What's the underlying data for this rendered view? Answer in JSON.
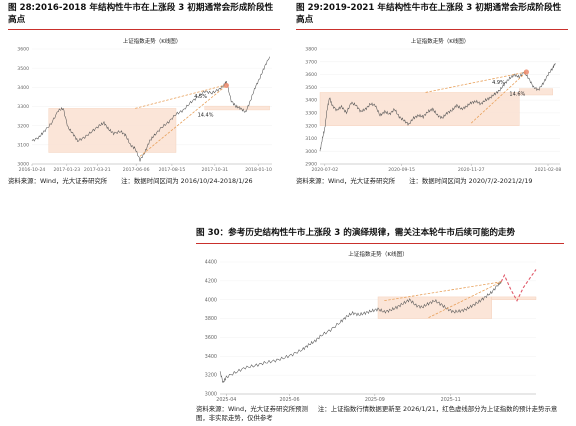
{
  "colors": {
    "line": "#555555",
    "zone_fill": "#fbe3d4",
    "zone_stroke": "#f3c8ae",
    "trend": "#e8a05a",
    "forecast": "#e05a6a",
    "marker": "#ec8a6c",
    "separator": "#c9302c",
    "grid": "#eeeeee",
    "text": "#222222"
  },
  "fig28": {
    "title": "图 28:2016-2018 年结构性牛市在上涨段 3 初期通常会形成阶段性高点",
    "source": "资料来源：Wind，光大证券研究所",
    "note": "注：数据时间区间为 2016/10/24-2018/1/26"
  },
  "fig29": {
    "title": "图 29:2019-2021 年结构性牛市在上涨段 3 初期通常会形成阶段性高点",
    "source": "资料来源：Wind，光大证券研究所",
    "note": "注：数据时间区间为 2020/7/2-2021/2/19"
  },
  "fig30": {
    "title": "图 30：参考历史结构性牛市上涨段 3 的演绎规律，需关注本轮牛市后续可能的走势",
    "source": "资料来源：Wind，光大证券研究所预测",
    "note": "注：上证指数行情数据更新至 2026/1/21，红色虚线部分为上证指数的预计走势示意图，非实际走势，仅供参考"
  },
  "chart_data": [
    {
      "type": "line",
      "title": "上证指数走势（K线图）",
      "ylim": [
        3000,
        3600
      ],
      "yticks": [
        3000,
        3100,
        3200,
        3300,
        3400,
        3500,
        3600
      ],
      "x_ticks": [
        "2016-10-24",
        "2017-01-23",
        "2017-03-21",
        "2017-06-06",
        "2017-08-15",
        "2017-10-31",
        "2018-01-10"
      ],
      "x_tick_pos": [
        0,
        0.145,
        0.272,
        0.434,
        0.583,
        0.762,
        0.944
      ],
      "series": [
        {
          "points": [
            [
              0,
              3120
            ],
            [
              0.03,
              3140
            ],
            [
              0.05,
              3170
            ],
            [
              0.08,
              3210
            ],
            [
              0.11,
              3280
            ],
            [
              0.13,
              3290
            ],
            [
              0.15,
              3190
            ],
            [
              0.17,
              3160
            ],
            [
              0.19,
              3120
            ],
            [
              0.22,
              3140
            ],
            [
              0.25,
              3170
            ],
            [
              0.28,
              3200
            ],
            [
              0.3,
              3215
            ],
            [
              0.32,
              3180
            ],
            [
              0.34,
              3160
            ],
            [
              0.37,
              3170
            ],
            [
              0.39,
              3150
            ],
            [
              0.41,
              3100
            ],
            [
              0.43,
              3080
            ],
            [
              0.45,
              3020
            ],
            [
              0.47,
              3060
            ],
            [
              0.49,
              3120
            ],
            [
              0.51,
              3150
            ],
            [
              0.54,
              3190
            ],
            [
              0.57,
              3220
            ],
            [
              0.6,
              3260
            ],
            [
              0.63,
              3280
            ],
            [
              0.66,
              3320
            ],
            [
              0.69,
              3350
            ],
            [
              0.72,
              3380
            ],
            [
              0.75,
              3370
            ],
            [
              0.78,
              3390
            ],
            [
              0.8,
              3410
            ],
            [
              0.81,
              3430
            ],
            [
              0.83,
              3330
            ],
            [
              0.85,
              3300
            ],
            [
              0.87,
              3290
            ],
            [
              0.89,
              3270
            ],
            [
              0.91,
              3330
            ],
            [
              0.93,
              3400
            ],
            [
              0.95,
              3450
            ],
            [
              0.97,
              3510
            ],
            [
              0.99,
              3560
            ]
          ]
        }
      ],
      "zones": [
        {
          "x0": 0.07,
          "x1": 0.6,
          "y0": 3060,
          "y1": 3290
        },
        {
          "x0": 0.72,
          "x1": 0.99,
          "y0": 3282,
          "y1": 3302
        }
      ],
      "trendlines": [
        {
          "from": [
            0.43,
            3290
          ],
          "to": [
            0.8,
            3410
          ],
          "label": "4.5%"
        },
        {
          "from": [
            0.45,
            3040
          ],
          "to": [
            0.81,
            3410
          ],
          "label": "14.4%"
        }
      ],
      "marker": [
        0.81,
        3410
      ]
    },
    {
      "type": "line",
      "title": "上证指数走势（K线图）",
      "ylim": [
        2900,
        3800
      ],
      "yticks": [
        2900,
        3000,
        3100,
        3200,
        3300,
        3400,
        3500,
        3600,
        3700,
        3800
      ],
      "x_ticks": [
        "2020-07-02",
        "2020-09-15",
        "2020-11-27",
        "2021-02-08"
      ],
      "x_tick_pos": [
        0.02,
        0.34,
        0.63,
        0.95
      ],
      "series": [
        {
          "points": [
            [
              0,
              3000
            ],
            [
              0.01,
              3100
            ],
            [
              0.02,
              3180
            ],
            [
              0.03,
              3330
            ],
            [
              0.04,
              3420
            ],
            [
              0.05,
              3360
            ],
            [
              0.07,
              3320
            ],
            [
              0.09,
              3350
            ],
            [
              0.11,
              3300
            ],
            [
              0.13,
              3380
            ],
            [
              0.15,
              3360
            ],
            [
              0.17,
              3310
            ],
            [
              0.19,
              3330
            ],
            [
              0.21,
              3370
            ],
            [
              0.23,
              3360
            ],
            [
              0.25,
              3280
            ],
            [
              0.27,
              3310
            ],
            [
              0.29,
              3290
            ],
            [
              0.31,
              3330
            ],
            [
              0.33,
              3270
            ],
            [
              0.35,
              3240
            ],
            [
              0.37,
              3210
            ],
            [
              0.39,
              3260
            ],
            [
              0.41,
              3280
            ],
            [
              0.43,
              3270
            ],
            [
              0.45,
              3310
            ],
            [
              0.47,
              3330
            ],
            [
              0.49,
              3280
            ],
            [
              0.51,
              3260
            ],
            [
              0.53,
              3300
            ],
            [
              0.55,
              3320
            ],
            [
              0.57,
              3360
            ],
            [
              0.59,
              3330
            ],
            [
              0.61,
              3350
            ],
            [
              0.63,
              3380
            ],
            [
              0.65,
              3390
            ],
            [
              0.67,
              3370
            ],
            [
              0.69,
              3400
            ],
            [
              0.71,
              3420
            ],
            [
              0.73,
              3450
            ],
            [
              0.75,
              3480
            ],
            [
              0.77,
              3530
            ],
            [
              0.79,
              3570
            ],
            [
              0.81,
              3600
            ],
            [
              0.83,
              3580
            ],
            [
              0.85,
              3620
            ],
            [
              0.87,
              3570
            ],
            [
              0.89,
              3500
            ],
            [
              0.91,
              3480
            ],
            [
              0.93,
              3530
            ],
            [
              0.95,
              3600
            ],
            [
              0.97,
              3650
            ],
            [
              0.98,
              3690
            ]
          ]
        }
      ],
      "zones": [
        {
          "x0": 0.0,
          "x1": 0.83,
          "y0": 3200,
          "y1": 3460
        },
        {
          "x0": 0.83,
          "x1": 0.97,
          "y0": 3440,
          "y1": 3490
        }
      ],
      "trendlines": [
        {
          "from": [
            0.44,
            3460
          ],
          "to": [
            0.86,
            3620
          ],
          "label": "4.9%"
        },
        {
          "from": [
            0.63,
            3220
          ],
          "to": [
            0.86,
            3620
          ],
          "label": "14.6%"
        }
      ],
      "marker": [
        0.86,
        3620
      ]
    },
    {
      "type": "line",
      "title": "上证指数走势（K线图）",
      "ylim": [
        3000,
        4400
      ],
      "yticks": [
        3000,
        3200,
        3400,
        3600,
        3800,
        4000,
        4200,
        4400
      ],
      "x_ticks": [
        "2025-04",
        "2025-06",
        "2025-09",
        "2025-11"
      ],
      "x_tick_pos": [
        0.02,
        0.22,
        0.49,
        0.73
      ],
      "series": [
        {
          "points": [
            [
              0,
              3240
            ],
            [
              0.01,
              3120
            ],
            [
              0.02,
              3180
            ],
            [
              0.05,
              3230
            ],
            [
              0.08,
              3280
            ],
            [
              0.11,
              3300
            ],
            [
              0.14,
              3330
            ],
            [
              0.17,
              3350
            ],
            [
              0.2,
              3380
            ],
            [
              0.23,
              3420
            ],
            [
              0.26,
              3470
            ],
            [
              0.28,
              3520
            ],
            [
              0.3,
              3560
            ],
            [
              0.32,
              3620
            ],
            [
              0.35,
              3680
            ],
            [
              0.38,
              3760
            ],
            [
              0.4,
              3820
            ],
            [
              0.42,
              3860
            ],
            [
              0.44,
              3840
            ],
            [
              0.46,
              3860
            ],
            [
              0.48,
              3880
            ],
            [
              0.5,
              3900
            ],
            [
              0.52,
              3870
            ],
            [
              0.54,
              3890
            ],
            [
              0.56,
              3920
            ],
            [
              0.58,
              3960
            ],
            [
              0.6,
              4000
            ],
            [
              0.62,
              3940
            ],
            [
              0.64,
              3920
            ],
            [
              0.66,
              3960
            ],
            [
              0.68,
              3990
            ],
            [
              0.7,
              3950
            ],
            [
              0.72,
              3900
            ],
            [
              0.74,
              3870
            ],
            [
              0.76,
              3880
            ],
            [
              0.78,
              3900
            ],
            [
              0.8,
              3940
            ],
            [
              0.82,
              3980
            ],
            [
              0.84,
              4030
            ],
            [
              0.86,
              4080
            ],
            [
              0.88,
              4160
            ],
            [
              0.89,
              4190
            ]
          ]
        },
        {
          "name": "forecast",
          "points": [
            [
              0.89,
              4190
            ],
            [
              0.9,
              4260
            ],
            [
              0.92,
              4110
            ],
            [
              0.94,
              3990
            ],
            [
              0.96,
              4130
            ],
            [
              1.0,
              4320
            ]
          ]
        }
      ],
      "zones": [
        {
          "x0": 0.5,
          "x1": 0.86,
          "y0": 3800,
          "y1": 4030
        },
        {
          "x0": 0.86,
          "x1": 1.0,
          "y0": 4000,
          "y1": 4030
        }
      ],
      "trendlines": [
        {
          "from": [
            0.52,
            3990
          ],
          "to": [
            0.89,
            4190
          ]
        },
        {
          "from": [
            0.66,
            3810
          ],
          "to": [
            0.89,
            4190
          ]
        }
      ]
    }
  ]
}
